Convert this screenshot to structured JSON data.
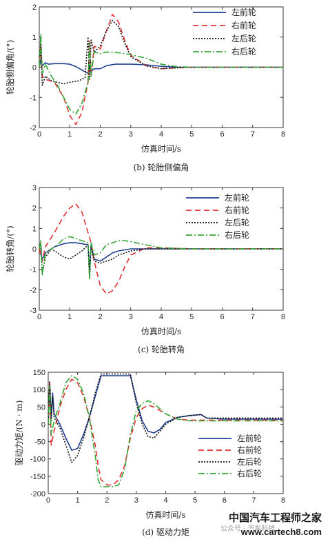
{
  "chart_data": [
    {
      "type": "line",
      "caption": "(b) 轮胎侧偏角",
      "xlabel": "仿真时间/s",
      "ylabel": "轮胎侧偏角/(°)",
      "xlim": [
        0,
        8
      ],
      "ylim": [
        -2,
        2
      ],
      "xticks": [
        0,
        1,
        2,
        3,
        4,
        5,
        6,
        7,
        8
      ],
      "yticks": [
        -2,
        -1,
        0,
        1,
        2
      ],
      "legend_position": "top-right",
      "series": [
        {
          "name": "左前轮",
          "color": "#1f3f8f",
          "dash": "solid",
          "x": [
            0,
            0.05,
            0.1,
            0.2,
            0.3,
            0.5,
            0.8,
            1.0,
            1.2,
            1.5,
            1.6,
            1.65,
            1.7,
            1.8,
            2.0,
            2.2,
            2.5,
            3.0,
            3.5,
            4.0,
            4.5,
            5,
            6,
            7,
            8
          ],
          "y": [
            0,
            0.25,
            0.05,
            0.15,
            0.1,
            0.12,
            0.12,
            0.1,
            0.02,
            -0.15,
            -0.2,
            0.05,
            -0.15,
            -0.05,
            -0.05,
            0.05,
            0.1,
            0.1,
            0.08,
            0.03,
            0,
            0,
            0,
            0,
            0
          ]
        },
        {
          "name": "右前轮",
          "color": "#e03030",
          "dash": "8,5",
          "x": [
            0,
            0.05,
            0.1,
            0.2,
            0.5,
            0.8,
            1.0,
            1.2,
            1.4,
            1.6,
            1.65,
            1.7,
            1.8,
            2.0,
            2.2,
            2.4,
            2.6,
            2.8,
            3.0,
            3.5,
            4.0,
            4.5,
            5,
            6,
            7,
            8
          ],
          "y": [
            0,
            0.8,
            -0.3,
            -0.4,
            -0.5,
            -1.0,
            -1.6,
            -1.9,
            -1.5,
            -0.5,
            0.9,
            -0.3,
            0.7,
            0.6,
            1.2,
            1.75,
            1.5,
            0.9,
            0.4,
            0.05,
            -0.05,
            -0.02,
            0,
            0,
            0,
            0
          ]
        },
        {
          "name": "左后轮",
          "color": "#111111",
          "dash": "2,2",
          "x": [
            0,
            0.05,
            0.1,
            0.2,
            0.4,
            0.6,
            0.8,
            1.0,
            1.3,
            1.5,
            1.6,
            1.65,
            1.7,
            1.8,
            2.0,
            2.2,
            2.4,
            2.6,
            2.8,
            3.0,
            3.5,
            4.0,
            4.5,
            5,
            6,
            7,
            8
          ],
          "y": [
            0,
            0.8,
            -0.6,
            -0.3,
            -0.45,
            -0.5,
            -0.55,
            -0.5,
            -0.45,
            -0.35,
            1.0,
            -0.4,
            0.9,
            0.5,
            0.7,
            1.2,
            1.55,
            1.35,
            0.8,
            0.35,
            0.05,
            -0.05,
            -0.02,
            0,
            0,
            0,
            0
          ]
        },
        {
          "name": "右后轮",
          "color": "#33a533",
          "dash": "9,3,2,3",
          "x": [
            0,
            0.05,
            0.1,
            0.2,
            0.4,
            0.6,
            0.8,
            1.0,
            1.2,
            1.4,
            1.6,
            1.65,
            1.7,
            1.8,
            2.0,
            2.2,
            2.4,
            2.6,
            2.8,
            3.0,
            3.5,
            4.0,
            4.5,
            5,
            6,
            7,
            8
          ],
          "y": [
            0,
            1.1,
            -0.2,
            0.1,
            -0.3,
            -0.6,
            -1.0,
            -1.4,
            -1.55,
            -1.2,
            -0.5,
            0.8,
            -0.3,
            0.5,
            0.45,
            0.5,
            0.5,
            0.48,
            0.45,
            0.42,
            0.3,
            0.1,
            0.02,
            0,
            0,
            0,
            0
          ]
        }
      ]
    },
    {
      "type": "line",
      "caption": "(c) 轮胎转角",
      "xlabel": "仿真时间/s",
      "ylabel": "轮胎转角/(°)",
      "xlim": [
        0,
        8
      ],
      "ylim": [
        -3,
        3
      ],
      "xticks": [
        0,
        1,
        2,
        3,
        4,
        5,
        6,
        7,
        8
      ],
      "yticks": [
        -3,
        -2,
        -1,
        0,
        1,
        2,
        3
      ],
      "legend_position": "top-right",
      "series": [
        {
          "name": "左前轮",
          "color": "#1f3f8f",
          "dash": "solid",
          "x": [
            0,
            0.1,
            0.2,
            0.5,
            0.8,
            1.0,
            1.2,
            1.4,
            1.6,
            1.65,
            1.7,
            1.8,
            2.0,
            2.2,
            2.4,
            2.6,
            3.0,
            3.5,
            4.0,
            5,
            6,
            7,
            8
          ],
          "y": [
            0,
            -0.5,
            -0.2,
            0.1,
            0.25,
            0.3,
            0.3,
            0.25,
            0.2,
            -1.1,
            0.2,
            -0.5,
            -0.6,
            -0.4,
            -0.2,
            -0.1,
            0,
            0,
            0,
            0,
            0,
            0,
            0
          ]
        },
        {
          "name": "右前轮",
          "color": "#e03030",
          "dash": "8,5",
          "x": [
            0,
            0.1,
            0.2,
            0.5,
            0.8,
            1.0,
            1.2,
            1.4,
            1.6,
            1.7,
            1.8,
            2.0,
            2.2,
            2.4,
            2.6,
            2.8,
            3.0,
            3.5,
            4.0,
            5,
            6,
            7,
            8
          ],
          "y": [
            0,
            -0.6,
            0.1,
            0.8,
            1.6,
            2.0,
            2.2,
            1.8,
            0.8,
            0.3,
            -0.6,
            -1.8,
            -2.2,
            -2.05,
            -1.6,
            -0.9,
            -0.3,
            0.05,
            0.05,
            0,
            0,
            0,
            0
          ]
        },
        {
          "name": "左后轮",
          "color": "#111111",
          "dash": "2,2",
          "x": [
            0,
            0.05,
            0.1,
            0.2,
            0.4,
            0.6,
            0.8,
            1.0,
            1.2,
            1.4,
            1.6,
            1.65,
            1.7,
            1.8,
            2.0,
            2.2,
            2.4,
            2.6,
            3.0,
            3.5,
            4.0,
            5,
            6,
            7,
            8
          ],
          "y": [
            0,
            0.3,
            -1.2,
            -0.4,
            0,
            -0.2,
            -0.4,
            -0.5,
            -0.3,
            -0.1,
            0.2,
            -1.4,
            0.1,
            -0.6,
            -0.7,
            -0.6,
            -0.5,
            -0.3,
            -0.1,
            0,
            0,
            0,
            0,
            0,
            0
          ]
        },
        {
          "name": "右后轮",
          "color": "#33a533",
          "dash": "9,3,2,3",
          "x": [
            0,
            0.05,
            0.1,
            0.2,
            0.4,
            0.6,
            0.8,
            1.0,
            1.2,
            1.4,
            1.6,
            1.65,
            1.7,
            1.8,
            2.0,
            2.2,
            2.4,
            2.6,
            2.8,
            3.0,
            3.5,
            4.0,
            5,
            6,
            7,
            8
          ],
          "y": [
            0,
            0.4,
            -1.3,
            -0.2,
            0,
            0.2,
            0.5,
            0.6,
            0.5,
            0.4,
            0.3,
            -1.5,
            0.3,
            -0.3,
            -0.2,
            0.2,
            0.3,
            0.4,
            0.4,
            0.35,
            0.2,
            0.05,
            0,
            0,
            0,
            0
          ]
        }
      ]
    },
    {
      "type": "line",
      "caption": "(d) 驱动力矩",
      "xlabel": "仿真时间/s",
      "ylabel": "驱动力矩/(N · m)",
      "xlim": [
        0,
        8
      ],
      "ylim": [
        -200,
        150
      ],
      "xticks": [
        0,
        1,
        2,
        3,
        4,
        5,
        6,
        7,
        8
      ],
      "yticks": [
        -200,
        -150,
        -100,
        -50,
        0,
        50,
        100,
        150
      ],
      "legend_position": "bottom-right",
      "series": [
        {
          "name": "左前轮",
          "color": "#1f3f8f",
          "dash": "solid",
          "x": [
            0,
            0.05,
            0.1,
            0.15,
            0.2,
            0.4,
            0.6,
            0.8,
            1.0,
            1.2,
            1.4,
            1.6,
            1.8,
            2.0,
            2.8,
            3.0,
            3.2,
            3.4,
            3.6,
            3.8,
            4.0,
            4.4,
            4.8,
            5.2,
            5.4,
            6,
            7,
            8
          ],
          "y": [
            0,
            120,
            20,
            90,
            30,
            0,
            -40,
            -75,
            -70,
            -30,
            20,
            80,
            140,
            140,
            140,
            70,
            10,
            -20,
            -25,
            -15,
            5,
            20,
            25,
            28,
            18,
            15,
            15,
            15
          ]
        },
        {
          "name": "右前轮",
          "color": "#e03030",
          "dash": "8,5",
          "x": [
            0,
            0.05,
            0.1,
            0.2,
            0.4,
            0.6,
            0.8,
            1.0,
            1.2,
            1.4,
            1.6,
            1.7,
            1.8,
            2.0,
            2.2,
            2.4,
            2.6,
            2.8,
            3.0,
            3.2,
            3.4,
            3.6,
            4.0,
            4.4,
            4.8,
            5.2,
            6,
            7,
            8
          ],
          "y": [
            0,
            120,
            -60,
            -20,
            50,
            100,
            130,
            120,
            80,
            20,
            -60,
            -120,
            -160,
            -175,
            -175,
            -160,
            -120,
            -40,
            20,
            45,
            55,
            50,
            30,
            15,
            12,
            12,
            12,
            12,
            12
          ]
        },
        {
          "name": "左后轮",
          "color": "#111111",
          "dash": "2,2",
          "x": [
            0,
            0.05,
            0.1,
            0.15,
            0.2,
            0.4,
            0.6,
            0.8,
            1.0,
            1.2,
            1.4,
            1.6,
            1.8,
            2.0,
            2.8,
            3.0,
            3.2,
            3.4,
            3.6,
            3.8,
            4.0,
            4.4,
            4.8,
            5.2,
            5.4,
            6,
            7,
            8
          ],
          "y": [
            0,
            125,
            10,
            80,
            20,
            -10,
            -60,
            -110,
            -90,
            -40,
            20,
            90,
            145,
            145,
            145,
            60,
            0,
            -35,
            -40,
            -20,
            0,
            20,
            25,
            28,
            18,
            18,
            18,
            18
          ]
        },
        {
          "name": "右后轮",
          "color": "#33a533",
          "dash": "9,3,2,3",
          "x": [
            0,
            0.05,
            0.1,
            0.2,
            0.4,
            0.6,
            0.8,
            1.0,
            1.2,
            1.4,
            1.6,
            1.7,
            1.8,
            2.0,
            2.2,
            2.4,
            2.6,
            2.8,
            3.0,
            3.2,
            3.4,
            3.6,
            4.0,
            4.4,
            4.8,
            5.2,
            6,
            7,
            8
          ],
          "y": [
            0,
            110,
            -30,
            10,
            60,
            120,
            140,
            130,
            90,
            20,
            -90,
            -160,
            -180,
            -180,
            -180,
            -175,
            -130,
            -30,
            40,
            60,
            68,
            60,
            30,
            15,
            10,
            10,
            10,
            10,
            10
          ]
        }
      ]
    }
  ],
  "watermark": {
    "brand": "中国汽车工程师之家",
    "site": "www.cartech8.com",
    "faint": "公众号 · 汽车科技"
  }
}
